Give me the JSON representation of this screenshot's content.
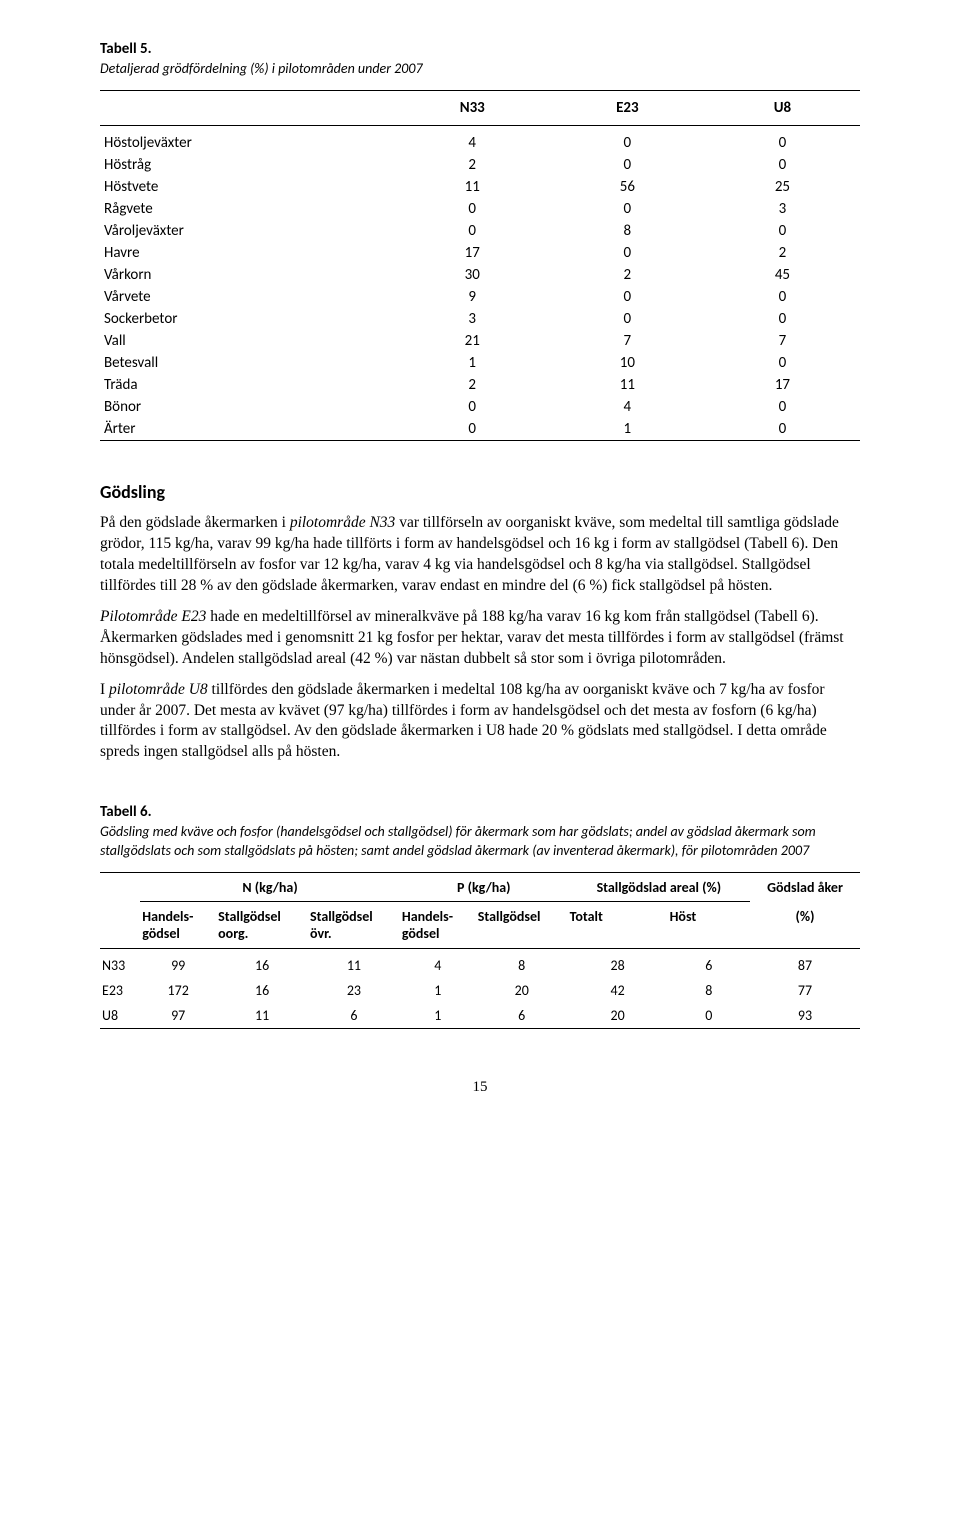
{
  "table5": {
    "caption_bold": "Tabell 5.",
    "caption_italic": "Detaljerad grödfördelning (%) i pilotområden under 2007",
    "columns": [
      "N33",
      "E23",
      "U8"
    ],
    "rows": [
      {
        "label": "Höstoljeväxter",
        "v": [
          "4",
          "0",
          "0"
        ]
      },
      {
        "label": "Höstråg",
        "v": [
          "2",
          "0",
          "0"
        ]
      },
      {
        "label": "Höstvete",
        "v": [
          "11",
          "56",
          "25"
        ]
      },
      {
        "label": "Rågvete",
        "v": [
          "0",
          "0",
          "3"
        ]
      },
      {
        "label": "Våroljeväxter",
        "v": [
          "0",
          "8",
          "0"
        ]
      },
      {
        "label": "Havre",
        "v": [
          "17",
          "0",
          "2"
        ]
      },
      {
        "label": "Vårkorn",
        "v": [
          "30",
          "2",
          "45"
        ]
      },
      {
        "label": "Vårvete",
        "v": [
          "9",
          "0",
          "0"
        ]
      },
      {
        "label": "Sockerbetor",
        "v": [
          "3",
          "0",
          "0"
        ]
      },
      {
        "label": "Vall",
        "v": [
          "21",
          "7",
          "7"
        ]
      },
      {
        "label": "Betesvall",
        "v": [
          "1",
          "10",
          "0"
        ]
      },
      {
        "label": "Träda",
        "v": [
          "2",
          "11",
          "17"
        ]
      },
      {
        "label": "Bönor",
        "v": [
          "0",
          "4",
          "0"
        ]
      },
      {
        "label": "Ärter",
        "v": [
          "0",
          "1",
          "0"
        ]
      }
    ]
  },
  "heading": "Gödsling",
  "paragraphs": {
    "p1a": "På den gödslade åkermarken i ",
    "p1i": "pilotområde N33",
    "p1b": " var tillförseln av oorganiskt kväve, som medeltal till samtliga gödslade grödor, 115 kg/ha, varav 99 kg/ha hade tillförts i form av handelsgödsel och 16 kg i form av stallgödsel (Tabell 6). Den totala medeltillförseln av fosfor var 12 kg/ha, varav 4 kg via handelsgödsel och 8 kg/ha via stallgödsel. Stallgödsel tillfördes till 28 % av den gödslade åkermarken, varav endast en mindre del (6 %) fick stallgödsel på hösten.",
    "p2i": "Pilotområde E23",
    "p2b": " hade en medeltillförsel av mineralkväve på 188 kg/ha varav 16 kg kom från stallgödsel (Tabell 6). Åkermarken gödslades med i genomsnitt 21 kg fosfor per hektar, varav det mesta tillfördes i form av stallgödsel (främst hönsgödsel). Andelen stallgödslad areal (42 %) var nästan dubbelt så stor som i övriga pilotområden.",
    "p3a": "I ",
    "p3i": "pilotområde U8",
    "p3b": " tillfördes den gödslade åkermarken i medeltal 108 kg/ha av oorganiskt kväve och 7 kg/ha av fosfor under år 2007. Det mesta av kvävet (97 kg/ha) tillfördes i form av handelsgödsel och det mesta av fosforn (6 kg/ha) tillfördes i form av stallgödsel. Av den gödslade åkermarken i U8 hade 20 % gödslats med stallgödsel. I detta område spreds ingen stallgödsel alls på hösten."
  },
  "table6": {
    "caption_bold": "Tabell 6.",
    "caption_italic": "Gödsling med kväve och fosfor (handelsgödsel och stallgödsel) för åkermark som har gödslats; andel av gödslad åkermark som stallgödslats och som stallgödslats på hösten; samt andel gödslad åkermark (av inventerad åkermark), för pilotområden 2007",
    "group_headers": {
      "n": "N (kg/ha)",
      "p": "P (kg/ha)",
      "areal": "Stallgödslad areal (%)",
      "godslad": "Gödslad åker"
    },
    "sub_headers": {
      "handels": "Handels-\ngödsel",
      "stall_oorg": "Stallgödsel\noorg.",
      "stall_ovr": "Stallgödsel\növr.",
      "handels2": "Handels-\ngödsel",
      "stall": "Stallgödsel",
      "totalt": "Totalt",
      "host": "Höst",
      "pct": "(%)"
    },
    "rows": [
      {
        "label": "N33",
        "v": [
          "99",
          "16",
          "11",
          "4",
          "8",
          "28",
          "6",
          "87"
        ]
      },
      {
        "label": "E23",
        "v": [
          "172",
          "16",
          "23",
          "1",
          "20",
          "42",
          "8",
          "77"
        ]
      },
      {
        "label": "U8",
        "v": [
          "97",
          "11",
          "6",
          "1",
          "6",
          "20",
          "0",
          "93"
        ]
      }
    ]
  },
  "pagenum": "15"
}
